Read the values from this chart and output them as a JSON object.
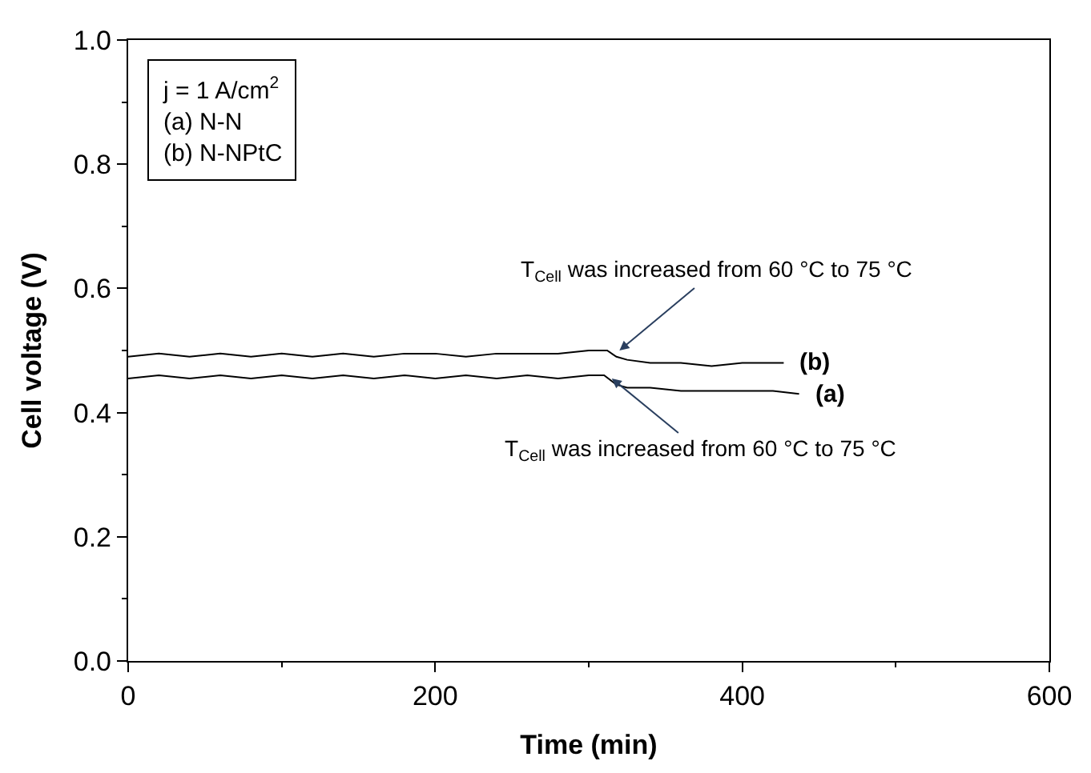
{
  "chart_data": {
    "type": "line",
    "xlabel": "Time (min)",
    "ylabel": "Cell voltage (V)",
    "xlim": [
      0,
      600
    ],
    "xticks": [
      0,
      200,
      400,
      600
    ],
    "ylim": [
      0,
      1.0
    ],
    "yticks": [
      {
        "value": 0,
        "label": "0.0"
      },
      0.2,
      0.4,
      0.6,
      0.8,
      {
        "value": 1.0,
        "label": "1.0"
      }
    ],
    "grid": false,
    "legend": false,
    "marker": "none",
    "line_style": "solid",
    "series": [
      {
        "name": "(b)",
        "color": "#000000",
        "x": [
          0,
          20,
          40,
          60,
          80,
          100,
          120,
          140,
          160,
          180,
          200,
          220,
          240,
          260,
          280,
          300,
          312,
          318,
          325,
          340,
          360,
          380,
          400,
          420,
          427
        ],
        "values": [
          0.49,
          0.495,
          0.49,
          0.495,
          0.49,
          0.495,
          0.49,
          0.495,
          0.49,
          0.495,
          0.495,
          0.49,
          0.495,
          0.495,
          0.495,
          0.5,
          0.5,
          0.49,
          0.485,
          0.48,
          0.48,
          0.475,
          0.48,
          0.48,
          0.48
        ]
      },
      {
        "name": "(a)",
        "color": "#000000",
        "x": [
          0,
          20,
          40,
          60,
          80,
          100,
          120,
          140,
          160,
          180,
          200,
          220,
          240,
          260,
          280,
          300,
          310,
          318,
          325,
          340,
          360,
          380,
          400,
          420,
          437
        ],
        "values": [
          0.455,
          0.46,
          0.455,
          0.46,
          0.455,
          0.46,
          0.455,
          0.46,
          0.455,
          0.46,
          0.455,
          0.46,
          0.455,
          0.46,
          0.455,
          0.46,
          0.46,
          0.445,
          0.44,
          0.44,
          0.435,
          0.435,
          0.435,
          0.435,
          0.43
        ]
      }
    ],
    "annotations": [
      {
        "text": "T$_{Cell}$ was increased from 60 °C to 75 °C",
        "x": 320,
        "y": 0.5
      },
      {
        "text": "T$_{Cell}$ was increased from 60 °C to 75 °C",
        "x": 315,
        "y": 0.455
      },
      "j = 1 A/cm$^{2}$",
      "(a) N-N",
      "(b) N-NPtC"
    ]
  }
}
